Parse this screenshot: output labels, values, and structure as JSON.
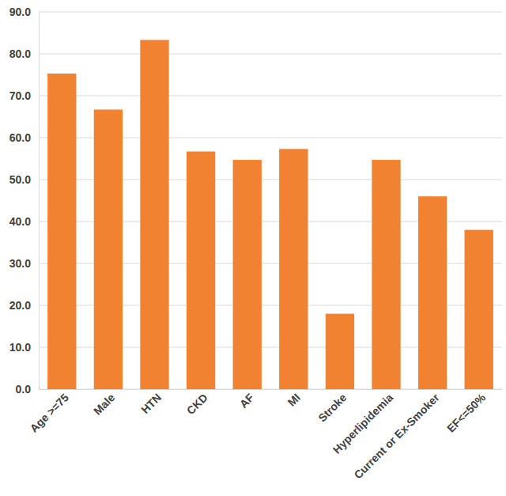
{
  "chart_data": {
    "type": "bar",
    "categories": [
      "Age >=75",
      "Male",
      "HTN",
      "CKD",
      "AF",
      "MI",
      "Stroke",
      "Hyperlipidemia",
      "Current or Ex-Smoker",
      "EF<=50%"
    ],
    "values": [
      75.3,
      66.7,
      83.3,
      56.7,
      54.7,
      57.3,
      18.0,
      54.7,
      46.0,
      38.0
    ],
    "color": "#f08232",
    "ylim": [
      0,
      90
    ],
    "yticks": [
      {
        "value": 0,
        "label": "0.0"
      },
      {
        "value": 10,
        "label": "10.0"
      },
      {
        "value": 20,
        "label": "20.0"
      },
      {
        "value": 30,
        "label": "30.0"
      },
      {
        "value": 40,
        "label": "40.0"
      },
      {
        "value": 50,
        "label": "50.0"
      },
      {
        "value": 60,
        "label": "60.0"
      },
      {
        "value": 70,
        "label": "70.0"
      },
      {
        "value": 80,
        "label": "80.0"
      },
      {
        "value": 90,
        "label": "90.0"
      }
    ],
    "grid": true
  }
}
